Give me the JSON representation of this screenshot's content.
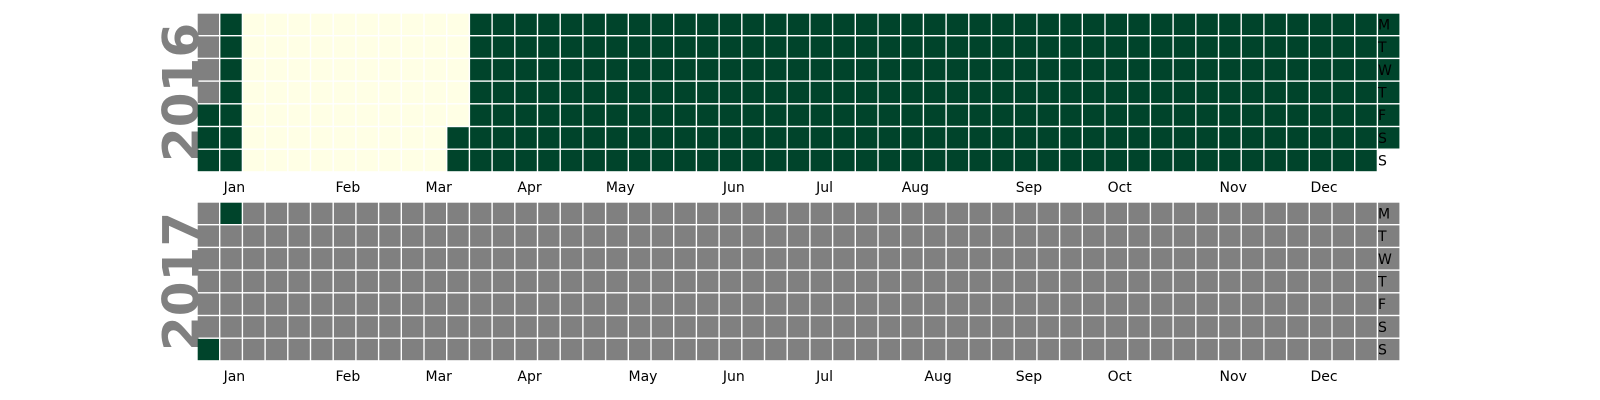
{
  "chart_data": {
    "type": "heatmap",
    "title": "",
    "calendars": [
      {
        "year": "2016",
        "jan1_weekday": 4,
        "days_in_year": 366,
        "rule": "Days 1-10 (Jan 1-10) and days 79-366 (Mar 19-Dec 31) are high; days 11-78 (Jan 11-Mar 18) are low; leading padding days before Jan 1 are missing.",
        "high_ranges": [
          [
            1,
            10
          ],
          [
            79,
            366
          ]
        ],
        "low_ranges": [
          [
            11,
            78
          ]
        ],
        "months": [
          "Jan",
          "Feb",
          "Mar",
          "Apr",
          "May",
          "Jun",
          "Jul",
          "Aug",
          "Sep",
          "Oct",
          "Nov",
          "Dec"
        ]
      },
      {
        "year": "2017",
        "jan1_weekday": 6,
        "days_in_year": 365,
        "rule": "Only day 1 and day 2 (Jan 1-2) are high; all remaining days are missing.",
        "high_ranges": [
          [
            1,
            2
          ]
        ],
        "low_ranges": [],
        "months": [
          "Jan",
          "Feb",
          "Mar",
          "Apr",
          "May",
          "Jun",
          "Jul",
          "Aug",
          "Sep",
          "Oct",
          "Nov",
          "Dec"
        ]
      }
    ],
    "weekday_labels": [
      "M",
      "T",
      "W",
      "T",
      "F",
      "S",
      "S"
    ],
    "colors": {
      "high": "#00442b",
      "low": "#ffffe5",
      "missing": "#808080",
      "grid": "#ffffff"
    },
    "legend": "none",
    "grid": false
  }
}
